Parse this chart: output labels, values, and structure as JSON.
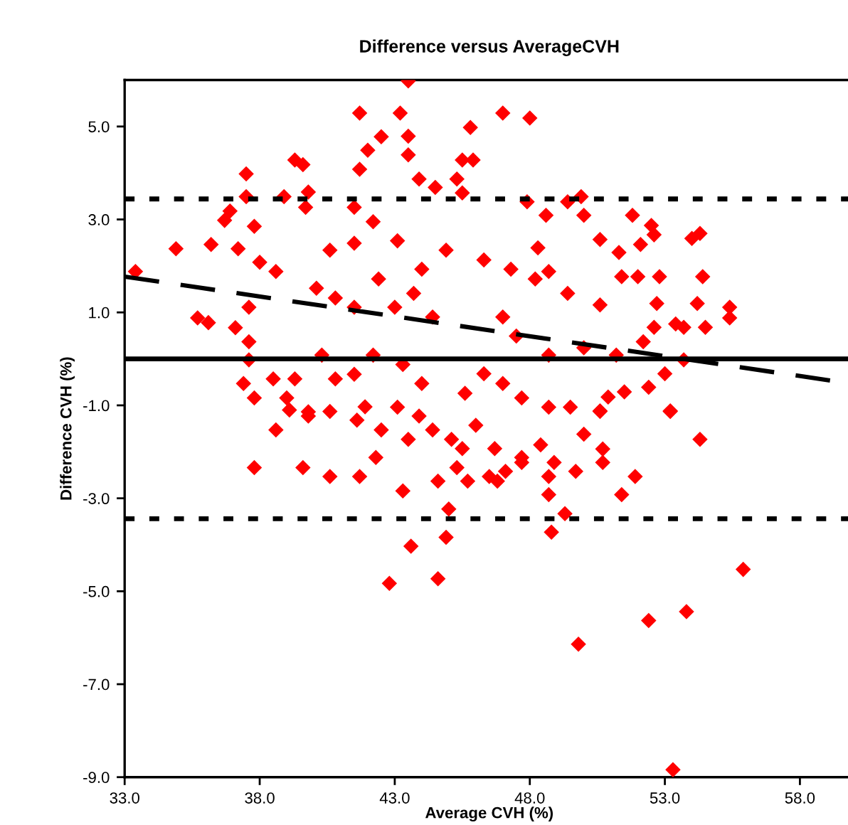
{
  "chart_data": {
    "type": "scatter",
    "title": "Difference versus AverageCVH",
    "xlabel": "Average CVH (%)",
    "ylabel": "Difference CVH (%)",
    "xlim": [
      33,
      60
    ],
    "xticks": [
      {
        "value": 33,
        "label": "33.0"
      },
      {
        "value": 38,
        "label": "38.0"
      },
      {
        "value": 43,
        "label": "43.0"
      },
      {
        "value": 48,
        "label": "48.0"
      },
      {
        "value": 53,
        "label": "53.0"
      },
      {
        "value": 58,
        "label": "58.0"
      }
    ],
    "ylim": [
      -9,
      6
    ],
    "yticks": [
      {
        "value": -9,
        "label": "-9.0"
      },
      {
        "value": -7,
        "label": "-7.0"
      },
      {
        "value": -5,
        "label": "-5.0"
      },
      {
        "value": -3,
        "label": "-3.0"
      },
      {
        "value": -1,
        "label": "-1.0"
      },
      {
        "value": 1,
        "label": "1.0"
      },
      {
        "value": 3,
        "label": "3.0"
      },
      {
        "value": 5,
        "label": "5.0"
      }
    ],
    "grid": false,
    "legend": false,
    "series": [
      {
        "color": "#ff0000",
        "marker": "diamond",
        "x": [
          33.4,
          34.9,
          36.2,
          35.7,
          36.1,
          37.1,
          37.2,
          36.7,
          36.9,
          37.5,
          37.5,
          37.6,
          37.6,
          37.4,
          37.8,
          37.6,
          38.6,
          39.3,
          39.6,
          39.8,
          38.9,
          39.7,
          38.0,
          37.8,
          38.5,
          39.0,
          39.3,
          41.7,
          43.5,
          43.2,
          42.5,
          42.0,
          41.7,
          43.5,
          43.5,
          43.9,
          44.5,
          41.5,
          42.2,
          40.6,
          41.5,
          42.4,
          40.1,
          40.8,
          41.5,
          43.0,
          43.7,
          44.4,
          40.3,
          41.5,
          42.2,
          43.3,
          44.0,
          43.1,
          44.0,
          44.9,
          43.1,
          40.8,
          39.8,
          45.8,
          47.0,
          48.0,
          45.5,
          45.9,
          45.3,
          45.5,
          47.9,
          49.4,
          49.9,
          50.0,
          48.6,
          51.8,
          52.5,
          52.6,
          54.3,
          54.0,
          50.6,
          51.3,
          52.1,
          54.4,
          52.8,
          52.0,
          52.7,
          54.2,
          55.4,
          55.4,
          54.5,
          53.4,
          53.7,
          52.6,
          52.2,
          53.7,
          53.0,
          52.4,
          53.2,
          51.5,
          50.9,
          50.6,
          49.5,
          48.7,
          47.0,
          47.7,
          46.3,
          45.6,
          51.4,
          50.6,
          49.4,
          48.2,
          47.3,
          46.3,
          48.3,
          48.7,
          47.0,
          48.7,
          50.0,
          51.2,
          47.5,
          37.8,
          38.6,
          39.6,
          40.6,
          41.7,
          42.3,
          42.8,
          43.3,
          43.6,
          44.6,
          44.6,
          44.9,
          45.0,
          45.3,
          45.7,
          46.5,
          47.1,
          46.8,
          47.7,
          48.8,
          49.3,
          48.7,
          48.7,
          48.9,
          49.7,
          49.8,
          50.7,
          51.4,
          51.9,
          52.4,
          53.3,
          53.8,
          55.9,
          54.3,
          53.2,
          50.6,
          50.7,
          50.0,
          48.4,
          46.7,
          46.0,
          45.1,
          43.5,
          44.4,
          42.5,
          41.6,
          41.9,
          40.6,
          39.8,
          39.1,
          43.9,
          45.5,
          47.7
        ],
        "values": [
          1.88,
          2.37,
          2.46,
          0.88,
          0.78,
          0.67,
          2.37,
          2.98,
          3.18,
          3.98,
          3.49,
          0.37,
          -0.02,
          -0.53,
          -0.84,
          1.11,
          1.88,
          4.28,
          4.18,
          3.59,
          3.49,
          3.26,
          2.08,
          2.85,
          -0.43,
          -0.84,
          -0.43,
          5.29,
          5.98,
          5.29,
          4.78,
          4.49,
          4.08,
          4.79,
          4.39,
          3.87,
          3.69,
          3.26,
          2.95,
          2.34,
          2.49,
          1.72,
          1.52,
          1.31,
          1.11,
          1.11,
          1.41,
          0.9,
          0.08,
          -0.33,
          0.08,
          -0.12,
          -0.53,
          -1.04,
          1.93,
          2.34,
          2.54,
          -0.43,
          -1.14,
          4.98,
          5.29,
          5.18,
          4.28,
          4.28,
          3.87,
          3.57,
          3.38,
          3.38,
          3.49,
          3.09,
          3.09,
          3.09,
          2.87,
          2.67,
          2.7,
          2.59,
          2.57,
          2.29,
          2.46,
          1.77,
          1.77,
          1.77,
          1.19,
          1.19,
          1.11,
          0.88,
          0.68,
          0.75,
          0.68,
          0.68,
          0.37,
          -0.02,
          -0.32,
          -0.61,
          -1.12,
          -0.71,
          -0.82,
          -1.12,
          -1.04,
          -1.04,
          -0.53,
          -0.84,
          -0.32,
          -0.74,
          1.77,
          1.16,
          1.41,
          1.72,
          1.93,
          2.13,
          2.39,
          1.88,
          0.9,
          0.08,
          0.24,
          0.08,
          0.49,
          -2.34,
          -1.53,
          -2.34,
          -2.53,
          -2.53,
          -2.12,
          -4.83,
          -2.84,
          -4.03,
          -4.73,
          -2.63,
          -3.84,
          -3.23,
          -2.34,
          -2.63,
          -2.53,
          -2.42,
          -2.63,
          -2.23,
          -3.73,
          -3.33,
          -2.92,
          -2.53,
          -2.23,
          -2.42,
          -6.14,
          -2.23,
          -2.92,
          -2.53,
          -5.63,
          -8.84,
          -5.44,
          -4.53,
          -1.73,
          -1.13,
          -1.13,
          -1.94,
          -1.62,
          -1.85,
          -1.93,
          -1.43,
          -1.73,
          -1.73,
          -1.53,
          -1.53,
          -1.32,
          -1.03,
          -1.13,
          -1.23,
          -1.1,
          -1.23,
          -1.93,
          -2.12
        ]
      },
      {
        "type": "line",
        "color": "#000000",
        "marker": "none",
        "line_style": "dashed",
        "x": [
          33,
          59.3
        ],
        "values": [
          1.77,
          -0.48
        ]
      }
    ],
    "ref_lines": [
      {
        "axis": "y",
        "value": 0,
        "color": "#000000",
        "line_style": "solid"
      },
      {
        "axis": "y",
        "value": 3.44,
        "color": "#000000",
        "line_style": "dotted"
      },
      {
        "axis": "y",
        "value": -3.44,
        "color": "#000000",
        "line_style": "dotted"
      }
    ]
  }
}
